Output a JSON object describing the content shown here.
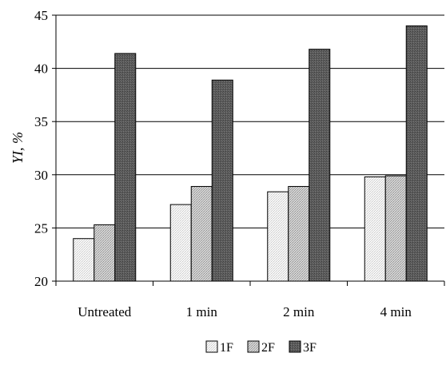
{
  "chart_data": {
    "type": "bar",
    "title": "",
    "xlabel": "",
    "ylabel": "YI, %",
    "ylim": [
      20,
      45
    ],
    "yticks": [
      20,
      25,
      30,
      35,
      40,
      45
    ],
    "grid": true,
    "legend_position": "bottom",
    "categories": [
      "Untreated",
      "1 min",
      "2 min",
      "4 min"
    ],
    "series": [
      {
        "name": "1F",
        "values": [
          24.0,
          27.2,
          28.4,
          29.8
        ],
        "color": "#f4f4f4"
      },
      {
        "name": "2F",
        "values": [
          25.3,
          28.9,
          28.9,
          29.9
        ],
        "color": "#c8c8c8"
      },
      {
        "name": "3F",
        "values": [
          41.4,
          38.9,
          41.8,
          44.0
        ],
        "color": "#5a5a5a"
      }
    ]
  }
}
